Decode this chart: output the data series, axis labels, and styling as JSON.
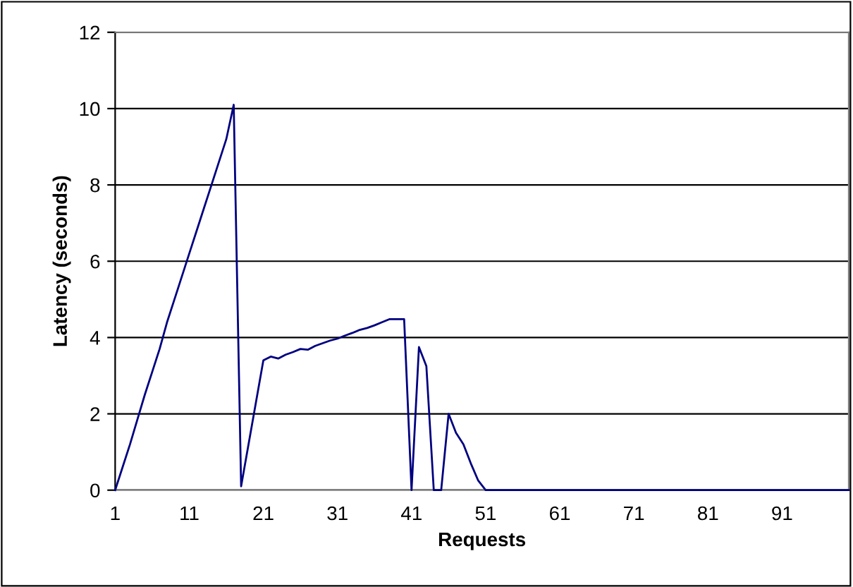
{
  "chart_data": {
    "type": "line",
    "xlabel": "Requests",
    "ylabel": "Latency (seconds)",
    "x": [
      1,
      2,
      3,
      4,
      5,
      6,
      7,
      8,
      9,
      10,
      11,
      12,
      13,
      14,
      15,
      16,
      17,
      18,
      19,
      20,
      21,
      22,
      23,
      24,
      25,
      26,
      27,
      28,
      29,
      30,
      31,
      32,
      33,
      34,
      35,
      36,
      37,
      38,
      39,
      40,
      41,
      42,
      43,
      44,
      45,
      46,
      47,
      48,
      49,
      50,
      51,
      52,
      53,
      54,
      55,
      56,
      57,
      58,
      59,
      60,
      61,
      62,
      63,
      64,
      65,
      66,
      67,
      68,
      69,
      70,
      71,
      72,
      73,
      74,
      75,
      76,
      77,
      78,
      79,
      80,
      81,
      82,
      83,
      84,
      85,
      86,
      87,
      88,
      89,
      90,
      91,
      92,
      93,
      94,
      95,
      96,
      97,
      98,
      99,
      100
    ],
    "series": [
      {
        "color": "#000080",
        "values": [
          0,
          0.6,
          1.2,
          1.85,
          2.5,
          3.1,
          3.7,
          4.4,
          5.0,
          5.6,
          6.2,
          6.8,
          7.4,
          8.0,
          8.6,
          9.2,
          10.1,
          0.1,
          1.2,
          2.3,
          3.4,
          3.5,
          3.45,
          3.55,
          3.62,
          3.7,
          3.68,
          3.78,
          3.85,
          3.92,
          3.97,
          4.05,
          4.12,
          4.2,
          4.25,
          4.32,
          4.4,
          4.48,
          4.48,
          4.48,
          0,
          3.75,
          3.25,
          0,
          0,
          2.0,
          1.5,
          1.2,
          0.7,
          0.25,
          0,
          0,
          0,
          0,
          0,
          0,
          0,
          0,
          0,
          0,
          0,
          0,
          0,
          0,
          0,
          0,
          0,
          0,
          0,
          0,
          0,
          0,
          0,
          0,
          0,
          0,
          0,
          0,
          0,
          0,
          0,
          0,
          0,
          0,
          0,
          0,
          0,
          0,
          0,
          0,
          0,
          0,
          0,
          0,
          0,
          0,
          0,
          0,
          0,
          0
        ]
      }
    ],
    "xlim": [
      1,
      100
    ],
    "xticks": [
      1,
      11,
      21,
      31,
      41,
      51,
      61,
      71,
      81,
      91
    ],
    "ylim": [
      0,
      12
    ],
    "yticks": [
      0,
      2,
      4,
      6,
      8,
      10,
      12
    ],
    "grid": "y",
    "marker": "none",
    "line_style": "solid",
    "legend": false
  }
}
